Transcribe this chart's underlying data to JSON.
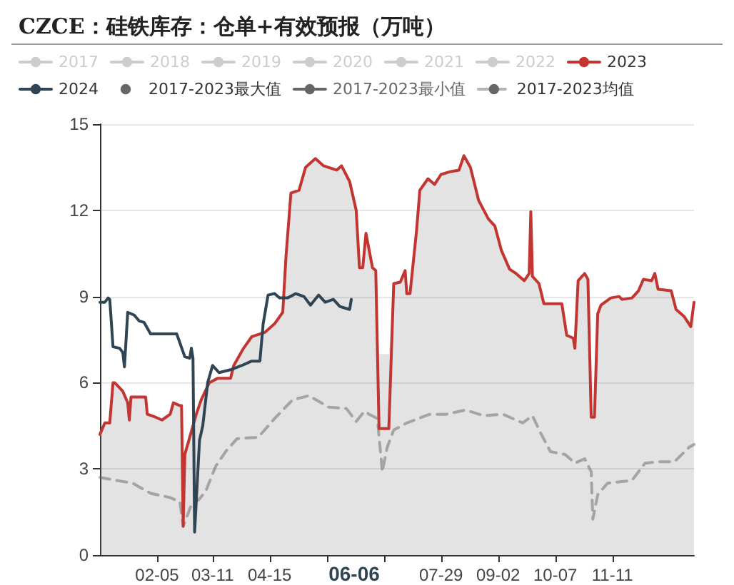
{
  "chart_data": {
    "type": "line",
    "title": "CZCE：硅铁库存：仓单+有效预报（万吨）",
    "xlim": [
      "--01-01",
      "--12-31"
    ],
    "xticks": [
      {
        "value": "--02-05",
        "label": "02-05"
      },
      {
        "value": "--03-11",
        "label": "03-11"
      },
      {
        "value": "--04-15",
        "label": "04-15"
      },
      {
        "value": "--05-20",
        "label": null
      },
      {
        "value": "--06-24",
        "label": null
      },
      {
        "value": "--07-29",
        "label": "07-29"
      },
      {
        "value": "--09-02",
        "label": "09-02"
      },
      {
        "value": "--10-07",
        "label": "10-07"
      },
      {
        "value": "--11-11",
        "label": "11-11"
      }
    ],
    "ylim": [
      0,
      15
    ],
    "yticks": [
      0,
      3,
      6,
      9,
      12,
      15
    ],
    "grid": "y",
    "legend": "top",
    "marker": "none",
    "annotations": [
      "06-06"
    ],
    "series": [
      {
        "name": "2017",
        "color": "#cccccc"
      },
      {
        "name": "2018",
        "color": "#cccccc"
      },
      {
        "name": "2019",
        "color": "#cccccc"
      },
      {
        "name": "2020",
        "color": "#cccccc"
      },
      {
        "name": "2021",
        "color": "#cccccc"
      },
      {
        "name": "2022",
        "color": "#cccccc"
      },
      {
        "name": "2017-2023最大值",
        "type": "area",
        "color": "#666666",
        "x": [
          "--01-01",
          "--01-04",
          "--01-07",
          "--01-09",
          "--01-10",
          "--01-15",
          "--01-18",
          "--01-19",
          "--01-20",
          "--01-29",
          "--01-30",
          "--02-04",
          "--02-08",
          "--02-13",
          "--02-15",
          "--02-19",
          "--02-20",
          "--02-21",
          "--02-22",
          "--02-25",
          "--03-01",
          "--03-04",
          "--03-09",
          "--03-14",
          "--03-22",
          "--03-24",
          "--03-30",
          "--04-04",
          "--04-12",
          "--04-18",
          "--04-23",
          "--04-25",
          "--04-28",
          "--05-03",
          "--05-07",
          "--05-13",
          "--05-18",
          "--05-26",
          "--05-29",
          "--06-03",
          "--06-07",
          "--06-09",
          "--06-11",
          "--06-13",
          "--06-17",
          "--06-19",
          "--06-21",
          "--06-27",
          "--06-30",
          "--07-04",
          "--07-07",
          "--07-08",
          "--07-10",
          "--07-14",
          "--07-16",
          "--07-21",
          "--07-25",
          "--07-29",
          "--08-04",
          "--08-09",
          "--08-12",
          "--08-16",
          "--08-21",
          "--08-27",
          "--08-31",
          "--09-04",
          "--09-09",
          "--09-13",
          "--09-18",
          "--09-21",
          "--09-22",
          "--09-23",
          "--09-27",
          "--09-30",
          "--10-11",
          "--10-14",
          "--10-18",
          "--10-19",
          "--10-21",
          "--10-25",
          "--10-27",
          "--10-29",
          "--10-31",
          "--11-02",
          "--11-04",
          "--11-10",
          "--11-15",
          "--11-17",
          "--11-23",
          "--11-27",
          "--11-30",
          "--12-05",
          "--12-07",
          "--12-09",
          "--12-17",
          "--12-20",
          "--12-25",
          "--12-29",
          "--12-31"
        ],
        "values": [
          4.2,
          4.6,
          4.6,
          6.0,
          6.0,
          5.7,
          5.3,
          4.7,
          5.5,
          5.5,
          4.9,
          4.8,
          4.7,
          4.9,
          5.3,
          5.2,
          5.2,
          1.0,
          3.5,
          4.1,
          4.9,
          5.4,
          6.0,
          6.15,
          6.15,
          6.6,
          7.2,
          7.6,
          7.75,
          8.05,
          8.45,
          10.4,
          12.6,
          12.7,
          13.5,
          13.8,
          13.55,
          13.4,
          13.55,
          13.0,
          12.0,
          10.0,
          10.0,
          11.2,
          10.0,
          9.9,
          7.0,
          7.0,
          9.45,
          9.5,
          9.9,
          9.1,
          9.1,
          11.3,
          12.7,
          13.1,
          12.9,
          13.25,
          13.35,
          13.4,
          13.9,
          13.5,
          12.35,
          11.7,
          11.45,
          10.6,
          9.95,
          9.8,
          9.55,
          9.8,
          11.95,
          9.7,
          9.45,
          8.75,
          8.75,
          7.65,
          7.55,
          7.2,
          9.55,
          9.8,
          9.6,
          4.8,
          4.8,
          8.4,
          8.7,
          8.95,
          9.0,
          8.9,
          8.95,
          9.2,
          9.6,
          9.55,
          9.8,
          9.25,
          9.2,
          8.55,
          8.3,
          7.95,
          8.8
        ]
      },
      {
        "name": "2017-2023最小值",
        "color": "#666666"
      },
      {
        "name": "2017-2023均值",
        "color": "#666666",
        "line_style": "dashed",
        "x": [
          "--01-01",
          "--01-21",
          "--02-01",
          "--02-13",
          "--02-19",
          "--02-21",
          "--02-26",
          "--03-03",
          "--03-07",
          "--03-13",
          "--03-19",
          "--03-26",
          "--04-08",
          "--04-18",
          "--04-29",
          "--05-09",
          "--05-21",
          "--06-01",
          "--06-07",
          "--06-12",
          "--06-15",
          "--06-20",
          "--06-23",
          "--06-26",
          "--06-30",
          "--07-08",
          "--07-22",
          "--08-01",
          "--08-13",
          "--08-24",
          "--09-05",
          "--09-17",
          "--09-23",
          "--09-28",
          "--10-04",
          "--10-13",
          "--10-19",
          "--10-25",
          "--10-29",
          "--10-30",
          "--11-02",
          "--11-08",
          "--11-23",
          "--12-01",
          "--12-10",
          "--12-19",
          "--12-28",
          "--12-31"
        ],
        "values": [
          2.7,
          2.5,
          2.15,
          2.0,
          1.85,
          1.0,
          1.75,
          1.95,
          2.25,
          3.1,
          3.6,
          4.05,
          4.1,
          4.75,
          5.4,
          5.55,
          5.15,
          5.1,
          4.65,
          5.0,
          4.9,
          4.75,
          2.9,
          3.75,
          4.35,
          4.6,
          4.9,
          4.9,
          5.05,
          4.85,
          4.9,
          4.6,
          4.85,
          4.25,
          3.6,
          3.5,
          3.2,
          3.35,
          2.9,
          1.25,
          2.1,
          2.5,
          2.6,
          3.2,
          3.25,
          3.25,
          3.75,
          3.85
        ]
      },
      {
        "name": "2023",
        "color": "#c23531",
        "x": [
          "--01-01",
          "--01-04",
          "--01-07",
          "--01-09",
          "--01-10",
          "--01-15",
          "--01-18",
          "--01-19",
          "--01-20",
          "--01-29",
          "--01-30",
          "--02-04",
          "--02-08",
          "--02-13",
          "--02-15",
          "--02-19",
          "--02-20",
          "--02-21",
          "--02-22",
          "--02-25",
          "--03-01",
          "--03-04",
          "--03-09",
          "--03-14",
          "--03-22",
          "--03-24",
          "--03-30",
          "--04-04",
          "--04-12",
          "--04-18",
          "--04-23",
          "--04-25",
          "--04-28",
          "--05-03",
          "--05-07",
          "--05-13",
          "--05-18",
          "--05-26",
          "--05-29",
          "--06-03",
          "--06-07",
          "--06-09",
          "--06-11",
          "--06-13",
          "--06-17",
          "--06-19",
          "--06-21",
          "--06-27",
          "--06-30",
          "--07-04",
          "--07-07",
          "--07-08",
          "--07-10",
          "--07-14",
          "--07-16",
          "--07-21",
          "--07-25",
          "--07-29",
          "--08-04",
          "--08-09",
          "--08-12",
          "--08-16",
          "--08-21",
          "--08-27",
          "--08-31",
          "--09-04",
          "--09-09",
          "--09-13",
          "--09-18",
          "--09-21",
          "--09-22",
          "--09-23",
          "--09-27",
          "--09-30",
          "--10-11",
          "--10-14",
          "--10-18",
          "--10-19",
          "--10-21",
          "--10-25",
          "--10-27",
          "--10-29",
          "--10-31",
          "--11-02",
          "--11-04",
          "--11-10",
          "--11-15",
          "--11-17",
          "--11-23",
          "--11-27",
          "--11-30",
          "--12-05",
          "--12-07",
          "--12-09",
          "--12-17",
          "--12-20",
          "--12-25",
          "--12-29",
          "--12-31"
        ],
        "values": [
          4.2,
          4.6,
          4.6,
          6.0,
          6.0,
          5.7,
          5.3,
          4.7,
          5.5,
          5.5,
          4.9,
          4.8,
          4.7,
          4.9,
          5.3,
          5.2,
          5.2,
          1.0,
          3.5,
          4.1,
          4.9,
          5.4,
          6.0,
          6.15,
          6.15,
          6.6,
          7.2,
          7.6,
          7.75,
          8.05,
          8.45,
          10.4,
          12.6,
          12.7,
          13.5,
          13.8,
          13.55,
          13.4,
          13.55,
          13.0,
          12.0,
          10.0,
          10.0,
          11.2,
          10.0,
          9.9,
          4.4,
          4.4,
          9.45,
          9.5,
          9.9,
          9.1,
          9.1,
          11.3,
          12.7,
          13.1,
          12.9,
          13.25,
          13.35,
          13.4,
          13.9,
          13.5,
          12.35,
          11.7,
          11.45,
          10.6,
          9.95,
          9.8,
          9.55,
          9.8,
          11.95,
          9.7,
          9.45,
          8.75,
          8.75,
          7.65,
          7.55,
          7.2,
          9.55,
          9.8,
          9.6,
          4.8,
          4.8,
          8.4,
          8.7,
          8.95,
          9.0,
          8.9,
          8.95,
          9.2,
          9.6,
          9.55,
          9.8,
          9.25,
          9.2,
          8.55,
          8.3,
          7.95,
          8.8
        ]
      },
      {
        "name": "2024",
        "color": "#2f4554",
        "x": [
          "--01-01",
          "--01-04",
          "--01-06",
          "--01-07",
          "--01-09",
          "--01-13",
          "--01-15",
          "--01-16",
          "--01-18",
          "--01-22",
          "--01-25",
          "--01-28",
          "--02-01",
          "--02-17",
          "--02-22",
          "--02-25",
          "--02-26",
          "--02-27",
          "--02-28",
          "--03-03",
          "--03-05",
          "--03-08",
          "--03-11",
          "--03-15",
          "--03-22",
          "--03-29",
          "--04-04",
          "--04-09",
          "--04-11",
          "--04-14",
          "--04-18",
          "--04-21",
          "--04-26",
          "--05-01",
          "--05-06",
          "--05-10",
          "--05-15",
          "--05-19",
          "--05-24",
          "--05-28",
          "--05-31",
          "--06-03",
          "--06-04"
        ],
        "values": [
          8.8,
          8.8,
          8.95,
          8.9,
          7.25,
          7.2,
          7.05,
          6.55,
          8.45,
          8.35,
          8.15,
          8.1,
          7.7,
          7.7,
          6.9,
          6.85,
          7.2,
          6.85,
          0.8,
          4.0,
          4.5,
          6.0,
          6.6,
          6.35,
          6.45,
          6.6,
          6.75,
          6.75,
          8.05,
          9.05,
          9.1,
          8.95,
          8.95,
          9.1,
          9.0,
          8.7,
          9.05,
          8.8,
          8.9,
          8.65,
          8.6,
          8.55,
          8.9
        ]
      }
    ]
  }
}
